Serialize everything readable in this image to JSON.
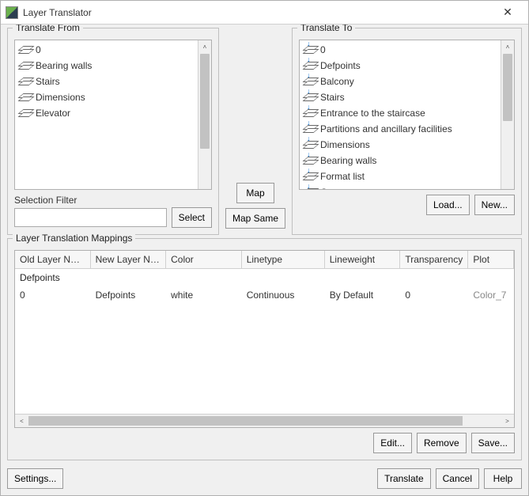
{
  "window": {
    "title": "Layer Translator"
  },
  "translate_from": {
    "legend": "Translate From",
    "items": [
      "0",
      "Bearing walls",
      "Stairs",
      "Dimensions",
      "Elevator"
    ],
    "selection_filter_label": "Selection Filter",
    "selection_filter_value": "",
    "select_button": "Select",
    "scrollbar": {
      "thumb_top_pct": 0,
      "thumb_height_pct": 78
    }
  },
  "mid": {
    "map_button": "Map",
    "map_same_button": "Map Same"
  },
  "translate_to": {
    "legend": "Translate To",
    "items": [
      "0",
      "Defpoints",
      "Balcony",
      "Stairs",
      "Entrance to the staircase",
      "Partitions and ancillary facilities",
      "Dimensions",
      "Bearing walls",
      "Format list",
      "Стены несущие"
    ],
    "load_button": "Load...",
    "new_button": "New...",
    "scrollbar": {
      "thumb_top_pct": 0,
      "thumb_height_pct": 55
    }
  },
  "mappings": {
    "legend": "Layer Translation Mappings",
    "columns": [
      "Old Layer Name",
      "New Layer Name",
      "Color",
      "Linetype",
      "Lineweight",
      "Transparency",
      "Plot"
    ],
    "group_label": "Defpoints",
    "rows": [
      {
        "old": "0",
        "new": "Defpoints",
        "color": "white",
        "linetype": "Continuous",
        "lineweight": "By Default",
        "transparency": "0",
        "plot": "Color_7"
      }
    ],
    "hscroll": {
      "thumb_left_pct": 0,
      "thumb_width_pct": 92
    },
    "edit_button": "Edit...",
    "remove_button": "Remove",
    "save_button": "Save..."
  },
  "bottom": {
    "settings_button": "Settings...",
    "translate_button": "Translate",
    "cancel_button": "Cancel",
    "help_button": "Help"
  },
  "colors": {
    "window_bg": "#f0f0f0",
    "border": "#b0b0b0",
    "text": "#333333",
    "accent": "#0a6ed1"
  }
}
